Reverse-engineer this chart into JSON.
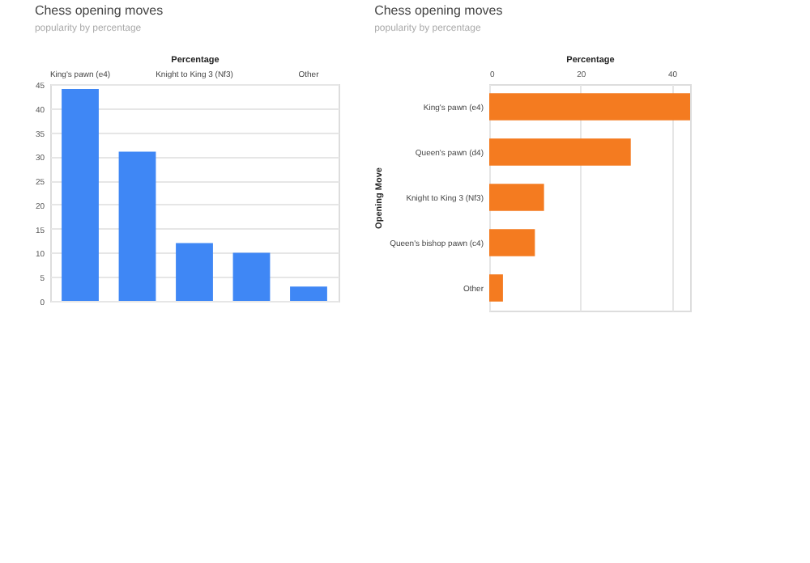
{
  "chart_data": [
    {
      "type": "bar",
      "title": "Chess opening moves",
      "subtitle": "popularity by percentage",
      "xlabel": "Percentage",
      "categories": [
        "King's pawn (e4)",
        null,
        "Knight to King 3 (Nf3)",
        null,
        "Other"
      ],
      "values": [
        44,
        31,
        12,
        10,
        3
      ],
      "color": "#3f87f5",
      "ylim": [
        0,
        45
      ],
      "yticks": [
        0,
        5,
        10,
        15,
        20,
        25,
        30,
        35,
        40,
        45
      ],
      "grid": "y"
    },
    {
      "type": "bar",
      "orientation": "horizontal",
      "title": "Chess opening moves",
      "subtitle": "popularity by percentage",
      "xlabel": "Percentage",
      "ylabel": "Opening Move",
      "categories": [
        "King's pawn (e4)",
        "Queen's pawn (d4)",
        "Knight to King 3 (Nf3)",
        "Queen's bishop pawn (c4)",
        "Other"
      ],
      "values": [
        44,
        31,
        12,
        10,
        3
      ],
      "color": "#f47b20",
      "xlim": [
        0,
        44
      ],
      "xticks": [
        0,
        20,
        40
      ],
      "grid": "x"
    }
  ]
}
